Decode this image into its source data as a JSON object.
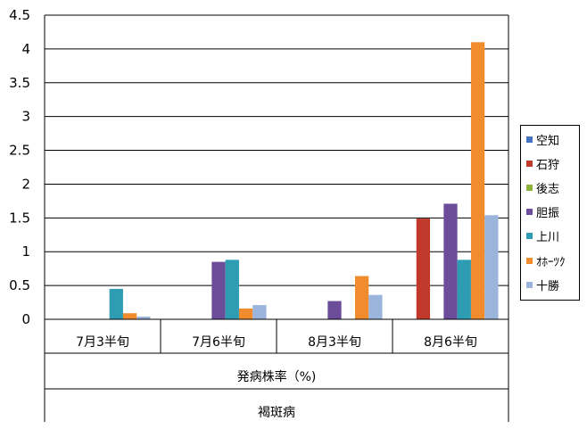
{
  "chart_data": {
    "type": "bar",
    "title": "",
    "xlabel": "",
    "ylabel": "",
    "ylim": [
      0,
      4.5
    ],
    "yticks": [
      "0",
      "0.5",
      "1",
      "1.5",
      "2",
      "2.5",
      "3",
      "3.5",
      "4",
      "4.5"
    ],
    "grid": true,
    "legend_position": "right",
    "categories": [
      "7月3半旬",
      "7月6半旬",
      "8月3半旬",
      "8月6半旬"
    ],
    "category_group_labels": [
      "発病株率（%)",
      "褐斑病"
    ],
    "series": [
      {
        "name": "空知",
        "color": "#4472C4",
        "values": [
          0,
          0,
          0,
          0
        ]
      },
      {
        "name": "石狩",
        "color": "#C0392B",
        "values": [
          0,
          0,
          0,
          1.49
        ]
      },
      {
        "name": "後志",
        "color": "#8DB33A",
        "values": [
          0,
          0,
          0,
          0
        ]
      },
      {
        "name": "胆振",
        "color": "#6B4D9A",
        "values": [
          0,
          0.85,
          0.27,
          1.71
        ]
      },
      {
        "name": "上川",
        "color": "#2E9DB4",
        "values": [
          0.45,
          0.88,
          0,
          0.88
        ]
      },
      {
        "name": "ｵﾎｰﾂｸ",
        "color": "#F08C2E",
        "values": [
          0.09,
          0.16,
          0.64,
          4.1
        ]
      },
      {
        "name": "十勝",
        "color": "#9BB4DB",
        "values": [
          0.04,
          0.21,
          0.36,
          1.54
        ]
      }
    ]
  }
}
